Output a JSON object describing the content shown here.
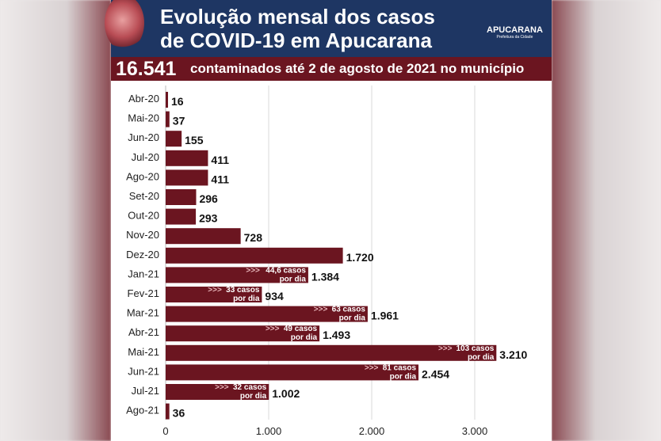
{
  "header": {
    "title_line1": "Evolução mensal dos casos",
    "title_line2": "de COVID-19 em Apucarana",
    "logo_text": "APUCARANA",
    "logo_sub": "Prefeitura da Cidade"
  },
  "summary": {
    "total": "16.541",
    "text": "contaminados até 2 de agosto de 2021 no município"
  },
  "colors": {
    "header": "#1e3663",
    "strip": "#6b1520",
    "bar": "#6b1520"
  },
  "chart_data": {
    "type": "bar",
    "orientation": "horizontal",
    "grid": true,
    "xlim": [
      0,
      3500
    ],
    "xticks": [
      0,
      1000,
      2000,
      3000
    ],
    "xtick_labels": [
      "0",
      "1.000",
      "2.000",
      "3.000"
    ],
    "categories": [
      "Abr-20",
      "Mai-20",
      "Jun-20",
      "Jul-20",
      "Ago-20",
      "Set-20",
      "Out-20",
      "Nov-20",
      "Dez-20",
      "Jan-21",
      "Fev-21",
      "Mar-21",
      "Abr-21",
      "Mai-21",
      "Jun-21",
      "Jul-21",
      "Ago-21"
    ],
    "values": [
      16,
      37,
      155,
      411,
      411,
      296,
      293,
      728,
      1720,
      1384,
      934,
      1961,
      1493,
      3210,
      2454,
      1002,
      36
    ],
    "value_labels": [
      "16",
      "37",
      "155",
      "411",
      "411",
      "296",
      "293",
      "728",
      "1.720",
      "1.384",
      "934",
      "1.961",
      "1.493",
      "3.210",
      "2.454",
      "1.002",
      "36"
    ],
    "annotations": [
      {
        "category": "Jan-21",
        "line1": "44,6 casos",
        "line2": "por dia"
      },
      {
        "category": "Fev-21",
        "line1": "33 casos",
        "line2": "por dia"
      },
      {
        "category": "Mar-21",
        "line1": "63 casos",
        "line2": "por dia"
      },
      {
        "category": "Abr-21",
        "line1": "49 casos",
        "line2": "por dia"
      },
      {
        "category": "Mai-21",
        "line1": "103 casos",
        "line2": "por dia"
      },
      {
        "category": "Jun-21",
        "line1": "81 casos",
        "line2": "por dia"
      },
      {
        "category": "Jul-21",
        "line1": "32 casos",
        "line2": "por dia"
      }
    ],
    "annotation_marker": ">>>"
  }
}
